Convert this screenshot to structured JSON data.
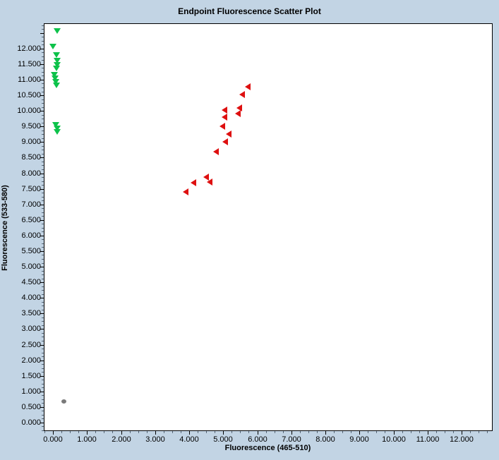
{
  "colors": {
    "background": "#C2D4E4",
    "plot_background": "#FFFFFF",
    "axis": "#000000",
    "text": "#000000",
    "series_green": "#0DC24A",
    "series_red": "#DE1010",
    "series_gray": "#7A7A7A"
  },
  "chart_data": {
    "type": "scatter",
    "title": "Endpoint Fluorescence Scatter Plot",
    "xlabel": "Fluorescence (465-510)",
    "ylabel": "Fluorescence (533-580)",
    "xlim": [
      -0.27,
      12.89
    ],
    "ylim": [
      -0.25,
      12.81
    ],
    "grid": false,
    "legend": "none",
    "x_axis": {
      "major_step": 1,
      "minor_step": 0.25,
      "tick_values": [
        0,
        1,
        2,
        3,
        4,
        5,
        6,
        7,
        8,
        9,
        10,
        11,
        12
      ],
      "tick_labels": [
        "0.000",
        "1.000",
        "2.000",
        "3.000",
        "4.000",
        "5.000",
        "6.000",
        "7.000",
        "8.000",
        "9.000",
        "10.000",
        "11.000",
        "12.000"
      ]
    },
    "y_axis": {
      "major_step": 0.5,
      "minor_step": 0.125,
      "tick_values": [
        0,
        0.5,
        1,
        1.5,
        2,
        2.5,
        3,
        3.5,
        4,
        4.5,
        5,
        5.5,
        6,
        6.5,
        7,
        7.5,
        8,
        8.5,
        9,
        9.5,
        10,
        10.5,
        11,
        11.5,
        12
      ],
      "tick_labels": [
        "0.000",
        "0.500",
        "1.000",
        "1.500",
        "2.000",
        "2.500",
        "3.000",
        "3.500",
        "4.000",
        "4.500",
        "5.000",
        "5.500",
        "6.000",
        "6.500",
        "7.000",
        "7.500",
        "8.000",
        "8.500",
        "9.000",
        "9.500",
        "10.000",
        "10.500",
        "11.000",
        "11.500",
        "12.000"
      ]
    },
    "series": [
      {
        "name": "green-triangles-down",
        "marker": "triangle-down",
        "color": "#0DC24A",
        "points": [
          [
            0.12,
            12.56
          ],
          [
            0.0,
            12.06
          ],
          [
            0.1,
            11.79
          ],
          [
            0.12,
            11.62
          ],
          [
            0.12,
            11.48
          ],
          [
            0.1,
            11.36
          ],
          [
            0.05,
            11.15
          ],
          [
            0.07,
            11.04
          ],
          [
            0.09,
            10.93
          ],
          [
            0.1,
            10.81
          ],
          [
            0.09,
            9.56
          ],
          [
            0.12,
            9.44
          ],
          [
            0.12,
            9.33
          ]
        ]
      },
      {
        "name": "red-triangles-left",
        "marker": "triangle-left",
        "color": "#DE1010",
        "points": [
          [
            5.71,
            10.77
          ],
          [
            5.56,
            10.52
          ],
          [
            5.47,
            10.09
          ],
          [
            5.04,
            10.02
          ],
          [
            5.42,
            9.91
          ],
          [
            5.04,
            9.8
          ],
          [
            4.97,
            9.5
          ],
          [
            5.15,
            9.25
          ],
          [
            5.06,
            9.0
          ],
          [
            4.78,
            8.69
          ],
          [
            4.49,
            7.87
          ],
          [
            4.6,
            7.71
          ],
          [
            4.13,
            7.69
          ],
          [
            3.9,
            7.4
          ]
        ]
      },
      {
        "name": "gray-dot",
        "marker": "dot",
        "color": "#7A7A7A",
        "points": [
          [
            0.3,
            0.68
          ]
        ]
      }
    ]
  }
}
